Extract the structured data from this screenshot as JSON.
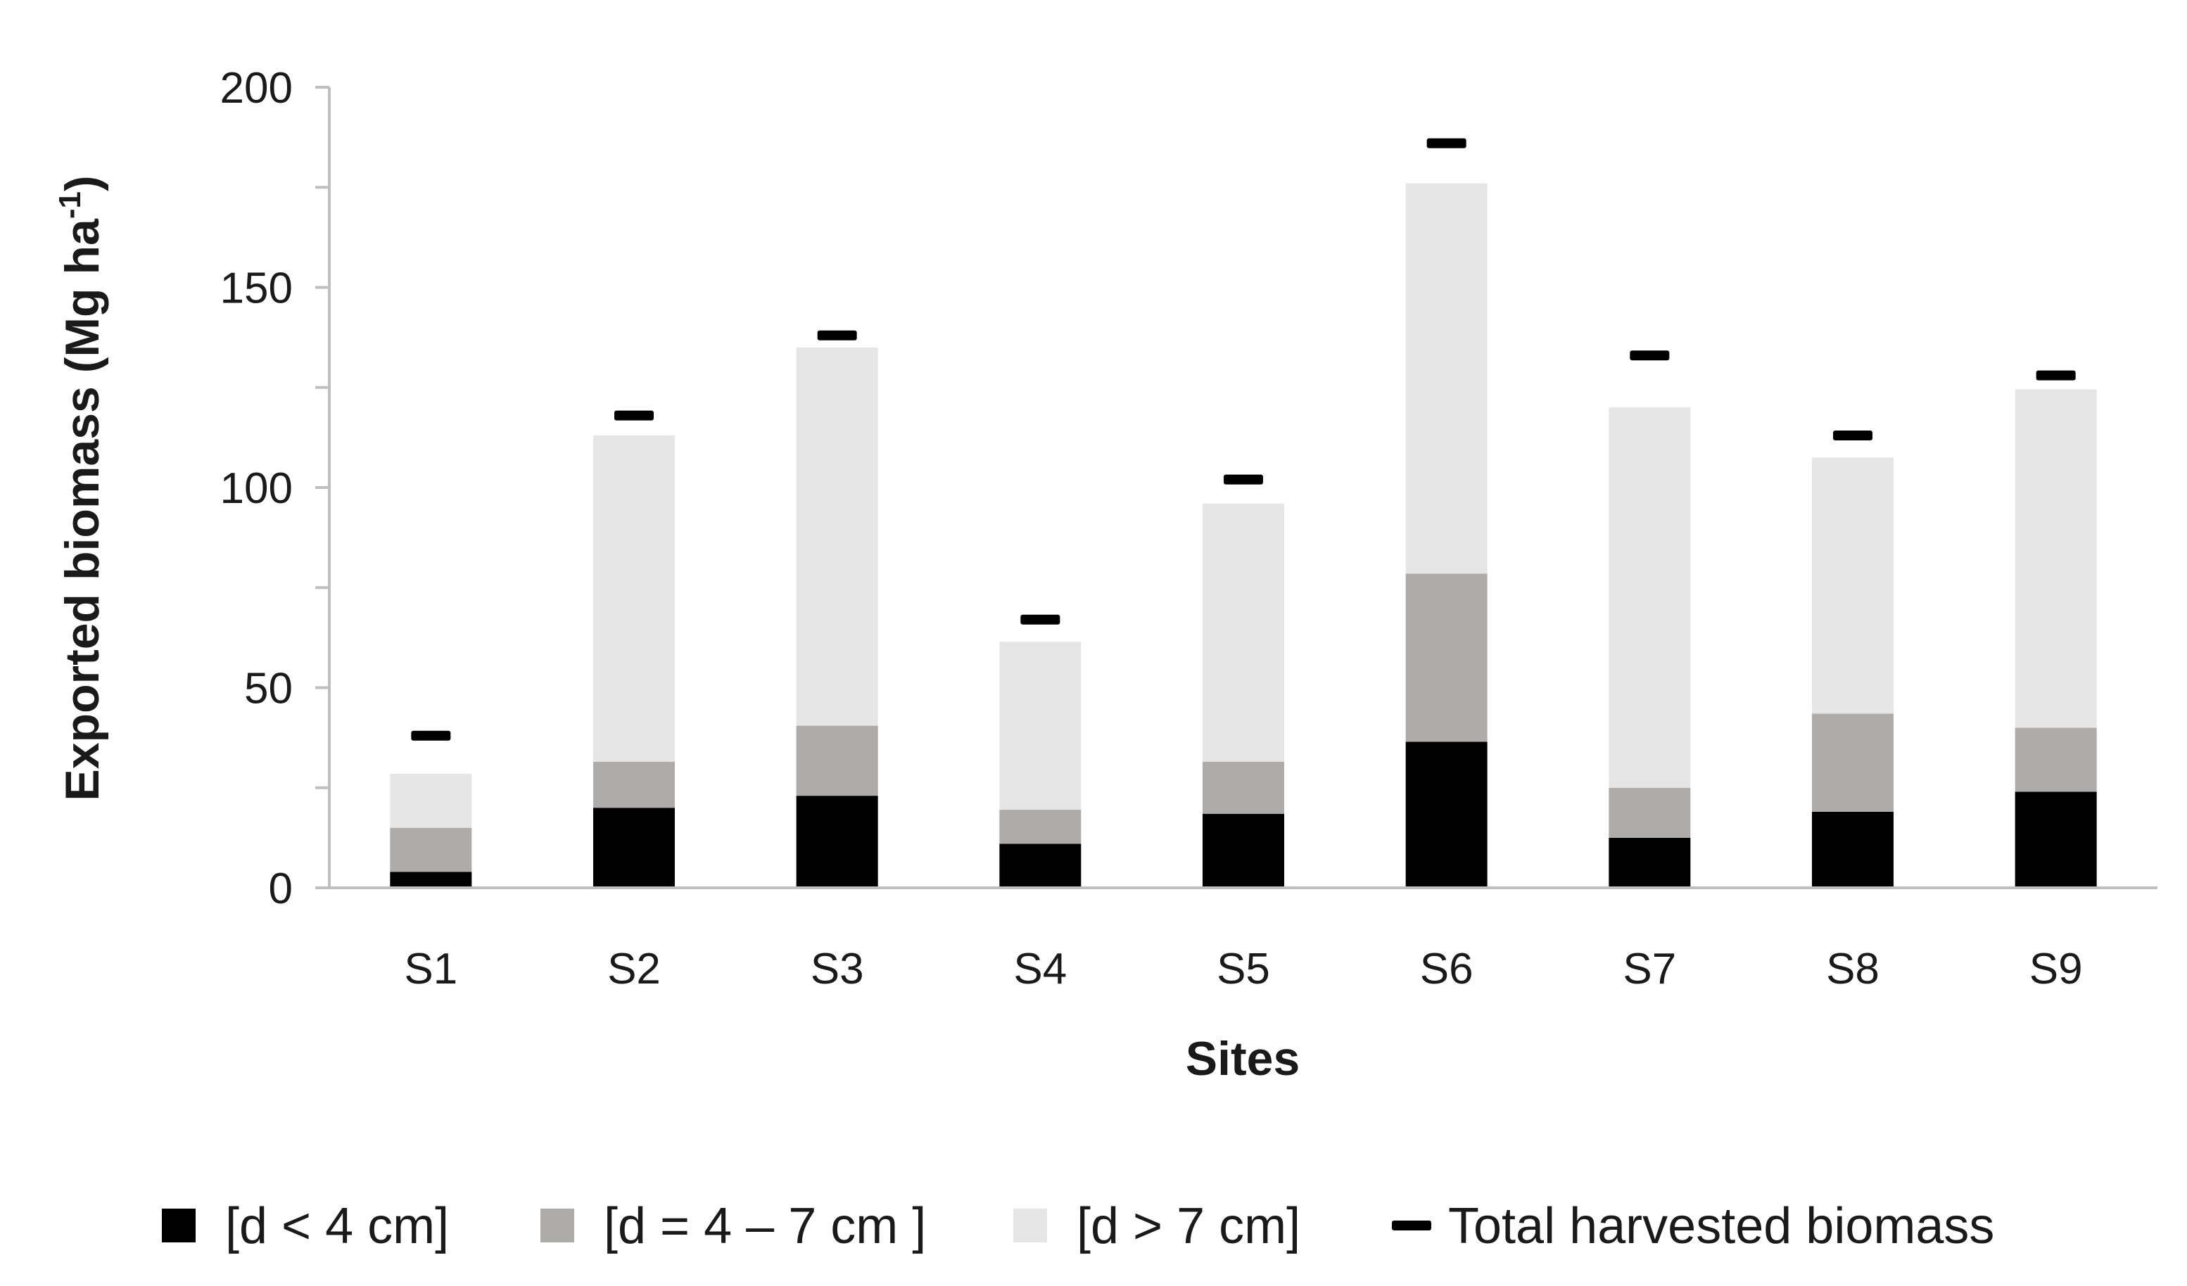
{
  "chart_data": {
    "type": "bar",
    "stacked": true,
    "categories": [
      "S1",
      "S2",
      "S3",
      "S4",
      "S5",
      "S6",
      "S7",
      "S8",
      "S9"
    ],
    "series": [
      {
        "name": "[d < 4 cm]",
        "color": "#000000",
        "values": [
          4,
          20,
          23,
          11,
          18.5,
          36.5,
          12.5,
          19,
          24
        ]
      },
      {
        "name": "[d = 4 – 7 cm ]",
        "color": "#aeabab",
        "values": [
          11,
          11.5,
          17.5,
          8.5,
          13,
          42,
          12.5,
          24.5,
          16
        ]
      },
      {
        "name": "[d > 7 cm]",
        "color": "#e6e6e6",
        "values": [
          13.5,
          81.5,
          94.5,
          42,
          64.5,
          97.5,
          95,
          64,
          84.5
        ]
      }
    ],
    "markers": {
      "name": "Total harvested biomass",
      "color": "#000000",
      "values": [
        38,
        118,
        138,
        67,
        102,
        186,
        133,
        113,
        128
      ]
    },
    "ylim": [
      0,
      200
    ],
    "yticks": [
      "0",
      "50",
      "100",
      "150",
      "200"
    ],
    "ylabel_main": "Exported biomass (Mg ha",
    "ylabel_sup": "-1",
    "ylabel_end": ")",
    "xlabel": "Sites",
    "legend_position": "bottom",
    "grid": false
  }
}
